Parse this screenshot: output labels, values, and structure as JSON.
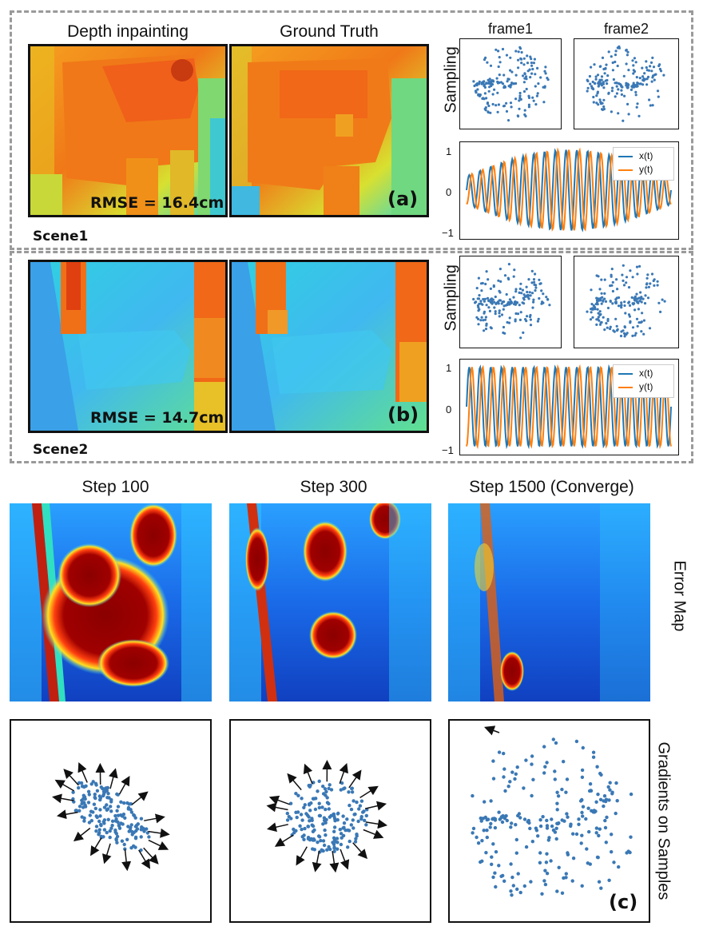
{
  "columns": {
    "depth_inpainting": "Depth inpainting",
    "ground_truth": "Ground Truth",
    "frame1": "frame1",
    "frame2": "frame2"
  },
  "scene1": {
    "label": "Scene1",
    "rmse": "RMSE = 16.4cm",
    "tag": "(a)"
  },
  "scene2": {
    "label": "Scene2",
    "rmse": "RMSE = 14.7cm",
    "tag": "(b)"
  },
  "sampling_label": "Sampling",
  "legend": {
    "x": "x(t)",
    "y": "y(t)"
  },
  "osc_axis": {
    "y_ticks": [
      "1",
      "0",
      "−1"
    ]
  },
  "steps": [
    "Step 100",
    "Step 300",
    "Step 1500 (Converge)"
  ],
  "error_map_label": "Error Map",
  "gradients_label": "Gradients on Samples",
  "panel_c_tag": "(c)",
  "colors": {
    "series_x": "#1f77b4",
    "series_y": "#ff7f0e",
    "sample_points": "#3a78b5",
    "dashed_border": "#9a9a9a"
  },
  "icons": [
    "dot-markers",
    "arrow-markers"
  ]
}
